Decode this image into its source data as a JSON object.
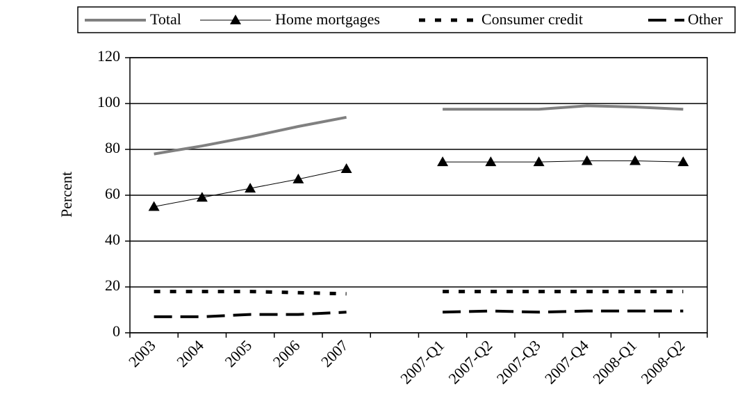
{
  "chart_data": {
    "type": "line",
    "y_label": "Percent",
    "categories": [
      "2003",
      "2004",
      "2005",
      "2006",
      "2007",
      null,
      "2007-Q1",
      "2007-Q2",
      "2007-Q3",
      "2007-Q4",
      "2008-Q1",
      "2008-Q2"
    ],
    "series": [
      {
        "name": "Total",
        "color": "#808080",
        "width": 4,
        "style": "solid",
        "values": [
          78,
          81.5,
          85.5,
          90,
          94,
          null,
          97.5,
          97.5,
          97.5,
          99,
          98.5,
          97.5
        ]
      },
      {
        "name": "Home mortgages",
        "color": "#000000",
        "width": 1,
        "style": "solid",
        "marker": "triangle",
        "values": [
          55,
          59,
          63,
          67,
          71.5,
          null,
          74.5,
          74.5,
          74.5,
          75,
          75,
          74.5
        ]
      },
      {
        "name": "Consumer credit",
        "color": "#000000",
        "width": 5,
        "style": "short-dash",
        "values": [
          18,
          18,
          18,
          17.5,
          17,
          null,
          18,
          18,
          18,
          18,
          18,
          18
        ]
      },
      {
        "name": "Other",
        "color": "#000000",
        "width": 4,
        "style": "long-dash",
        "values": [
          7,
          7,
          8,
          8,
          9,
          null,
          9,
          9.5,
          9,
          9.5,
          9.5,
          9.5
        ]
      }
    ],
    "ylim": [
      0,
      120
    ],
    "yticks": [
      0,
      20,
      40,
      60,
      80,
      100,
      120
    ],
    "grid": true,
    "legend": "top"
  }
}
